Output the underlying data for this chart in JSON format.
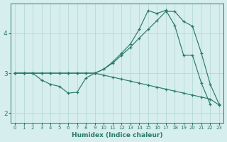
{
  "xlabel": "Humidex (Indice chaleur)",
  "bg_color": "#d6eeee",
  "line_color": "#2a7a6a",
  "grid_color": "#b8d8d8",
  "xlim": [
    -0.5,
    23.5
  ],
  "ylim": [
    1.75,
    4.75
  ],
  "xticks": [
    0,
    1,
    2,
    3,
    4,
    5,
    6,
    7,
    8,
    9,
    10,
    11,
    12,
    13,
    14,
    15,
    16,
    17,
    18,
    19,
    20,
    21,
    22,
    23
  ],
  "yticks": [
    2,
    3,
    4
  ],
  "line1_x": [
    0,
    1,
    2,
    3,
    4,
    5,
    6,
    7,
    8,
    9,
    10,
    11,
    12,
    13,
    14,
    15,
    16,
    17,
    18,
    19,
    20,
    21,
    22,
    23
  ],
  "line1_y": [
    3.0,
    3.0,
    3.0,
    2.83,
    2.72,
    2.67,
    2.5,
    2.52,
    2.88,
    3.0,
    3.1,
    3.28,
    3.5,
    3.73,
    4.1,
    4.57,
    4.5,
    4.58,
    4.2,
    3.45,
    3.45,
    2.75,
    2.22,
    null
  ],
  "line2_x": [
    0,
    1,
    2,
    3,
    4,
    5,
    6,
    7,
    8,
    9,
    10,
    11,
    12,
    13,
    14,
    15,
    16,
    17,
    18,
    19,
    20,
    21,
    22,
    23
  ],
  "line2_y": [
    3.0,
    3.0,
    3.0,
    3.0,
    3.0,
    3.0,
    3.0,
    3.0,
    3.0,
    3.0,
    3.1,
    3.25,
    3.45,
    3.65,
    3.88,
    4.1,
    4.32,
    4.55,
    4.55,
    4.3,
    4.18,
    3.5,
    2.72,
    2.22
  ],
  "line3_x": [
    0,
    1,
    2,
    3,
    4,
    5,
    6,
    7,
    8,
    9,
    10,
    11,
    12,
    13,
    14,
    15,
    16,
    17,
    18,
    19,
    20,
    21,
    22,
    23
  ],
  "line3_y": [
    3.0,
    3.0,
    3.0,
    3.0,
    3.0,
    3.0,
    3.0,
    3.0,
    3.0,
    3.0,
    2.95,
    2.9,
    2.85,
    2.8,
    2.75,
    2.7,
    2.65,
    2.6,
    2.55,
    2.5,
    2.45,
    2.4,
    2.35,
    2.2
  ]
}
